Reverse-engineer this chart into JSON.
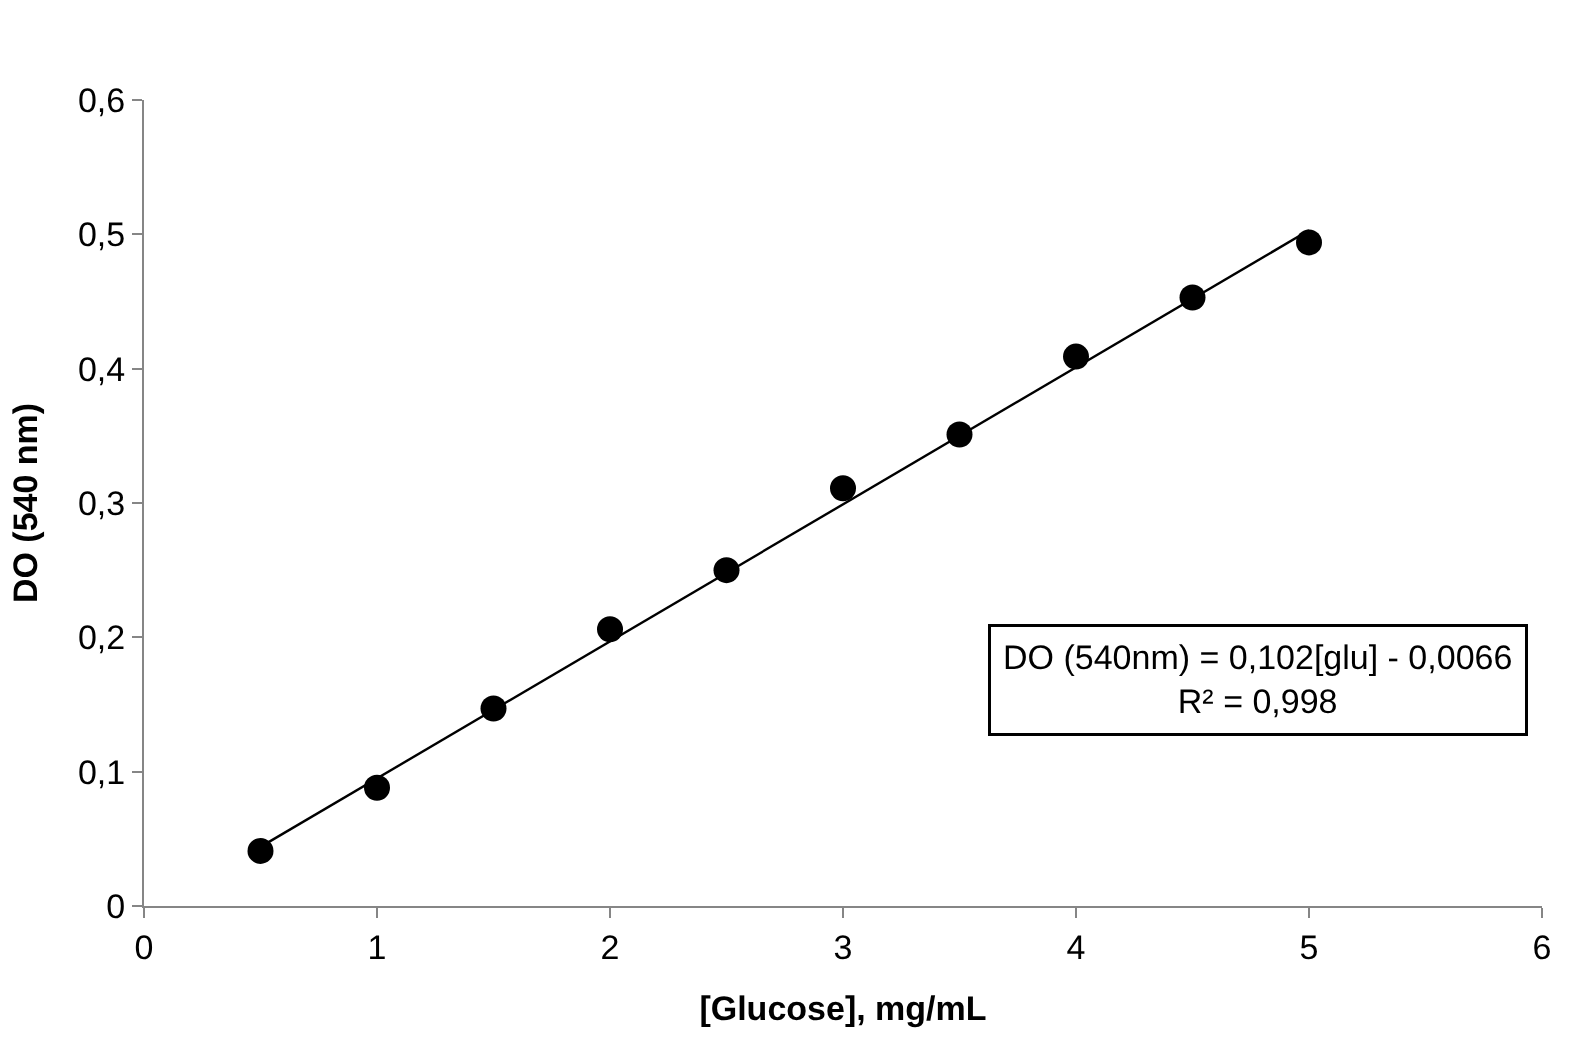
{
  "chart_data": {
    "type": "scatter",
    "xlabel": "[Glucose], mg/mL",
    "ylabel": "DO (540 nm)",
    "x": [
      0.5,
      1,
      1.5,
      2,
      2.5,
      3,
      3.5,
      4,
      4.5,
      5
    ],
    "series": [
      {
        "color": "#000000",
        "marker": "circle",
        "values": [
          0.041,
          0.088,
          0.147,
          0.206,
          0.25,
          0.311,
          0.351,
          0.409,
          0.453,
          0.494
        ]
      },
      {
        "type": "line",
        "color": "#000000",
        "marker": "none",
        "x": [
          0.5,
          5
        ],
        "values": [
          0.044,
          0.503
        ]
      }
    ],
    "annotations": [
      "DO (540nm) = 0,102[glu] - 0,0066\nR² = 0,998"
    ],
    "xlim": [
      0,
      6
    ],
    "xticks": [
      0,
      1,
      2,
      3,
      4,
      5,
      6
    ],
    "ylim": [
      0,
      0.6
    ],
    "yticks": [
      0,
      {
        "value": 0.1,
        "label": "0,1"
      },
      {
        "value": 0.2,
        "label": "0,2"
      },
      {
        "value": 0.3,
        "label": "0,3"
      },
      {
        "value": 0.4,
        "label": "0,4"
      },
      {
        "value": 0.5,
        "label": "0,5"
      },
      {
        "value": 0.6,
        "label": "0,6"
      }
    ],
    "grid": false
  }
}
